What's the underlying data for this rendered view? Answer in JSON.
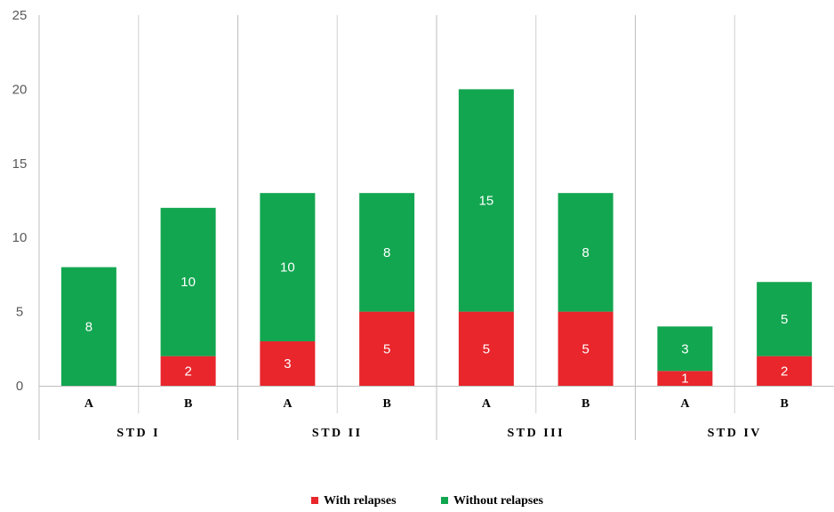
{
  "chart_data": {
    "type": "bar",
    "stacked": true,
    "title": "",
    "xlabel": "",
    "ylabel": "",
    "ylim": [
      0,
      25
    ],
    "yticks": [
      0,
      5,
      10,
      15,
      20,
      25
    ],
    "grid": false,
    "legend_position": "bottom",
    "groups": [
      "STD I",
      "STD II",
      "STD III",
      "STD IV"
    ],
    "categories": [
      "A",
      "B",
      "A",
      "B",
      "A",
      "B",
      "A",
      "B"
    ],
    "series": [
      {
        "name": "With relapses",
        "color": "#e8262c",
        "values": [
          0,
          2,
          3,
          5,
          5,
          5,
          1,
          2
        ]
      },
      {
        "name": "Without relapses",
        "color": "#12a650",
        "values": [
          8,
          10,
          10,
          8,
          15,
          8,
          3,
          5
        ]
      }
    ]
  }
}
